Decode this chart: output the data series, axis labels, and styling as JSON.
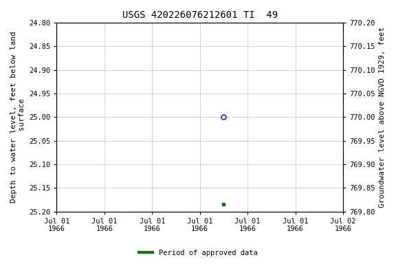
{
  "title": "USGS 420226076212601 TI  49",
  "ylabel_left": "Depth to water level, feet below land\n surface",
  "ylabel_right": "Groundwater level above NGVD 1929, feet",
  "ylim_left": [
    25.2,
    24.8
  ],
  "ylim_right": [
    769.8,
    770.2
  ],
  "yticks_left": [
    24.8,
    24.85,
    24.9,
    24.95,
    25.0,
    25.05,
    25.1,
    25.15,
    25.2
  ],
  "yticks_right": [
    769.8,
    769.85,
    769.9,
    769.95,
    770.0,
    770.05,
    770.1,
    770.15,
    770.2
  ],
  "data_open_x": 3.5,
  "data_open_y": 25.0,
  "data_filled_x": 3.5,
  "data_filled_y": 25.185,
  "background_color": "#ffffff",
  "grid_color": "#c0c0c0",
  "title_fontsize": 10,
  "axis_fontsize": 8,
  "tick_fontsize": 7.5,
  "legend_label": "Period of approved data",
  "legend_color": "#008000",
  "xlim": [
    0,
    6
  ],
  "num_xticks": 7,
  "xtick_labels": [
    "Jul 01\n1966",
    "Jul 01\n1966",
    "Jul 01\n1966",
    "Jul 01\n1966",
    "Jul 01\n1966",
    "Jul 01\n1966",
    "Jul 02\n1966"
  ]
}
